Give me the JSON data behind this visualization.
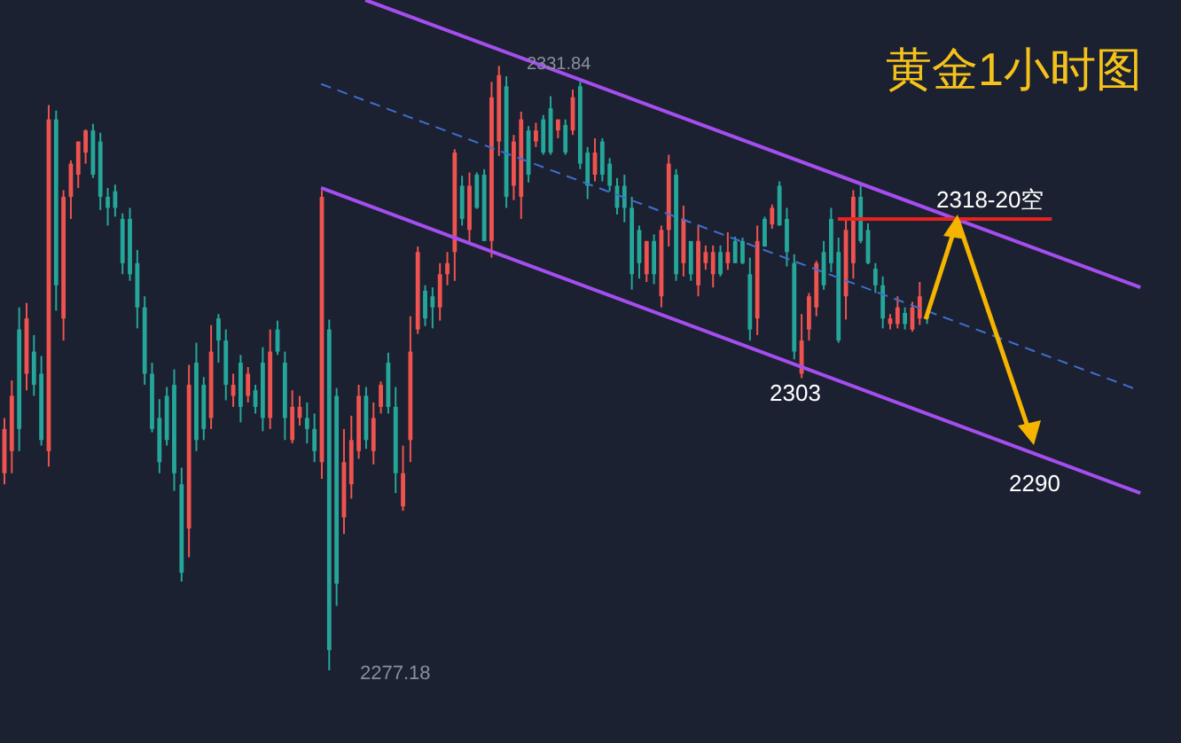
{
  "chart_data": {
    "type": "candlestick",
    "title": "黄金1小时图",
    "annotations": [
      "2331.84",
      "2277.18",
      "2303",
      "2290",
      "2318-20空"
    ],
    "categories": [
      null,
      null,
      null,
      null,
      null,
      null,
      null,
      null,
      null,
      null,
      null,
      null,
      null,
      null,
      null,
      null,
      null,
      null,
      null,
      null,
      null,
      null,
      null,
      null,
      null,
      null,
      null,
      null,
      null,
      null,
      null,
      null,
      null,
      null,
      null,
      null,
      null,
      null,
      null,
      null,
      null,
      null,
      null,
      null,
      null,
      null,
      null,
      null,
      null,
      null,
      null,
      null,
      null,
      null,
      null,
      null,
      null,
      null,
      null,
      null,
      null,
      null,
      null,
      null,
      null,
      null,
      null,
      null,
      null,
      null,
      null,
      null,
      null,
      null,
      null,
      null,
      null,
      null,
      null,
      null,
      null,
      null,
      null,
      null,
      null,
      null,
      null,
      null,
      null,
      null,
      null,
      null,
      null,
      null,
      null,
      null,
      null,
      null,
      null,
      null,
      null,
      null,
      null,
      null,
      null,
      null,
      null,
      null,
      null,
      null,
      null,
      null,
      null,
      null,
      null,
      null,
      null,
      null,
      null,
      null,
      null,
      null,
      null,
      null,
      null,
      null,
      null,
      null,
      null,
      null,
      null,
      null,
      null,
      null,
      null,
      null,
      null,
      null,
      null,
      null,
      null,
      null,
      null,
      null,
      null,
      null,
      null,
      null,
      null,
      null,
      null,
      null,
      null,
      null,
      null,
      null,
      null,
      null,
      null,
      null
    ],
    "ohlc": [
      [
        2299,
        2300,
        2294,
        2295
      ],
      [
        2302,
        2303.4,
        2295,
        2297
      ],
      [
        2299,
        2310,
        2297,
        2308
      ],
      [
        2309,
        2310.4,
        2302.5,
        2304
      ],
      [
        2303,
        2307.5,
        2302,
        2306
      ],
      [
        2298,
        2305.6,
        2297.5,
        2304
      ],
      [
        2327,
        2328.3,
        2295.6,
        2297
      ],
      [
        2312,
        2327.8,
        2309.7,
        2327
      ],
      [
        2320,
        2320.6,
        2307,
        2309
      ],
      [
        2323,
        2323.3,
        2318,
        2320
      ],
      [
        2325,
        2325,
        2320.8,
        2322
      ],
      [
        2326,
        2326.1,
        2323,
        2324
      ],
      [
        2322,
        2326.6,
        2321.7,
        2326
      ],
      [
        2320,
        2325.8,
        2318.8,
        2325
      ],
      [
        2319,
        2320.8,
        2317.4,
        2320
      ],
      [
        2319,
        2321.1,
        2318.2,
        2320.5
      ],
      [
        2314,
        2318.5,
        2313,
        2318
      ],
      [
        2313,
        2319,
        2312.4,
        2318
      ],
      [
        2310,
        2315.2,
        2308.1,
        2314
      ],
      [
        2304,
        2311,
        2303,
        2310
      ],
      [
        2299,
        2305,
        2298.7,
        2304
      ],
      [
        2296,
        2301.7,
        2295,
        2300
      ],
      [
        2298,
        2302.8,
        2297.5,
        2302
      ],
      [
        2295,
        2304.4,
        2293.4,
        2303
      ],
      [
        2286,
        2295.5,
        2285.2,
        2294
      ],
      [
        2303,
        2304.8,
        2287.4,
        2290
      ],
      [
        2298,
        2306.8,
        2297,
        2305
      ],
      [
        2299,
        2303.7,
        2298,
        2303
      ],
      [
        2306,
        2308.4,
        2299,
        2300
      ],
      [
        2307,
        2309.4,
        2305,
        2309
      ],
      [
        2303,
        2308,
        2301.6,
        2307
      ],
      [
        2303,
        2304,
        2301,
        2302
      ],
      [
        2301,
        2305.7,
        2299.6,
        2305
      ],
      [
        2304,
        2304.6,
        2301.4,
        2302
      ],
      [
        2301,
        2303,
        2300.4,
        2302.5
      ],
      [
        2300,
        2306.4,
        2298.8,
        2305
      ],
      [
        2306,
        2308,
        2299,
        2300
      ],
      [
        2306,
        2308.8,
        2305.7,
        2308
      ],
      [
        2300,
        2306,
        2298,
        2305
      ],
      [
        2301,
        2302.5,
        2297.7,
        2298
      ],
      [
        2301,
        2302,
        2299.3,
        2300
      ],
      [
        2299,
        2301.4,
        2297.7,
        2300
      ],
      [
        2297,
        2300.4,
        2296,
        2299
      ],
      [
        2320,
        2320.6,
        2294.5,
        2296
      ],
      [
        2279,
        2308.9,
        2277.18,
        2308
      ],
      [
        2285,
        2302.7,
        2283,
        2302
      ],
      [
        2296,
        2299,
        2289.5,
        2291
      ],
      [
        2298,
        2300.2,
        2292.7,
        2294
      ],
      [
        2302,
        2303,
        2296.3,
        2297
      ],
      [
        2298,
        2302.8,
        2297.2,
        2302
      ],
      [
        2300,
        2301.4,
        2295.8,
        2297
      ],
      [
        2303,
        2303.3,
        2300.4,
        2301
      ],
      [
        2301,
        2305.9,
        2300.4,
        2305
      ],
      [
        2295,
        2302.8,
        2293.2,
        2301
      ],
      [
        2295,
        2297.5,
        2291.6,
        2292
      ],
      [
        2306,
        2309.2,
        2296,
        2298
      ],
      [
        2315,
        2315.5,
        2307.6,
        2308
      ],
      [
        2309,
        2312,
        2308.3,
        2311.5
      ],
      [
        2310,
        2311.8,
        2308.1,
        2311
      ],
      [
        2313,
        2314,
        2308.8,
        2310
      ],
      [
        2314,
        2315,
        2312,
        2313
      ],
      [
        2324,
        2324.3,
        2312.4,
        2315
      ],
      [
        2318,
        2321.9,
        2317.4,
        2321
      ],
      [
        2321,
        2322.2,
        2315.8,
        2317
      ],
      [
        2319,
        2322.2,
        2318.9,
        2322
      ],
      [
        2316,
        2322.5,
        2316,
        2322
      ],
      [
        2329,
        2330.4,
        2314.5,
        2316
      ],
      [
        2331,
        2331.84,
        2323.7,
        2325
      ],
      [
        2320,
        2330.9,
        2319,
        2330
      ],
      [
        2325,
        2325.6,
        2319.7,
        2321
      ],
      [
        2327,
        2327.7,
        2318,
        2320
      ],
      [
        2322,
        2326.4,
        2321.3,
        2326
      ],
      [
        2326,
        2326.7,
        2324.5,
        2325
      ],
      [
        2324,
        2327.4,
        2323.8,
        2327
      ],
      [
        2324,
        2329.1,
        2323.8,
        2328
      ],
      [
        2327,
        2327,
        2325.3,
        2326
      ],
      [
        2324,
        2327,
        2323.8,
        2326.5
      ],
      [
        2329,
        2329.7,
        2325.6,
        2326
      ],
      [
        2323,
        2330.4,
        2322.5,
        2330
      ],
      [
        2321,
        2324.5,
        2319.8,
        2324
      ],
      [
        2324,
        2325.3,
        2321.4,
        2322
      ],
      [
        2322,
        2325.3,
        2321.4,
        2325
      ],
      [
        2321,
        2323.5,
        2320.5,
        2323
      ],
      [
        2319,
        2321.7,
        2318.4,
        2321
      ],
      [
        2319,
        2322,
        2317.7,
        2321
      ],
      [
        2313,
        2320,
        2311.6,
        2319
      ],
      [
        2314,
        2317.4,
        2312.6,
        2317
      ],
      [
        2316,
        2316,
        2312.3,
        2313
      ],
      [
        2313,
        2316.6,
        2312.1,
        2316
      ],
      [
        2317,
        2317.4,
        2310,
        2311
      ],
      [
        2323,
        2323.8,
        2315.5,
        2317
      ],
      [
        2313,
        2322.5,
        2312.4,
        2322
      ],
      [
        2318,
        2319.2,
        2312.8,
        2314
      ],
      [
        2313,
        2316,
        2312.4,
        2316
      ],
      [
        2316,
        2317.4,
        2311,
        2312
      ],
      [
        2315,
        2315.6,
        2313.4,
        2314
      ],
      [
        2315,
        2315.6,
        2311.8,
        2313
      ],
      [
        2313,
        2315.6,
        2312.8,
        2315
      ],
      [
        2315,
        2316.8,
        2313.4,
        2314
      ],
      [
        2314,
        2316.4,
        2314,
        2316
      ],
      [
        2314,
        2316.3,
        2313.9,
        2316
      ],
      [
        2308,
        2314.5,
        2307,
        2313
      ],
      [
        2316,
        2317.4,
        2307.5,
        2309
      ],
      [
        2315.5,
        2318.2,
        2315.5,
        2318
      ],
      [
        2319,
        2319.3,
        2317.1,
        2317.5
      ],
      [
        2317.4,
        2321.4,
        2317.4,
        2321
      ],
      [
        2315,
        2319,
        2313.7,
        2318
      ],
      [
        2306,
        2314.8,
        2305.3,
        2314
      ],
      [
        2307,
        2309.4,
        2303.6,
        2304
      ],
      [
        2311,
        2311.3,
        2307,
        2308
      ],
      [
        2314,
        2314.2,
        2309.2,
        2310
      ],
      [
        2312,
        2316,
        2311.6,
        2315
      ],
      [
        2314,
        2319,
        2313.2,
        2318
      ],
      [
        2307,
        2316.3,
        2306.8,
        2315
      ],
      [
        2317,
        2317.9,
        2308.9,
        2311
      ],
      [
        2320,
        2320.6,
        2312.6,
        2314
      ],
      [
        2316,
        2321.1,
        2315.8,
        2320
      ],
      [
        2314,
        2317.6,
        2313.9,
        2317
      ],
      [
        2312,
        2314,
        2311.3,
        2313.5
      ],
      [
        2309,
        2312.8,
        2308.1,
        2312
      ],
      [
        2309,
        2309.4,
        2308,
        2308.5
      ],
      [
        2310,
        2311,
        2308.1,
        2308.5
      ],
      [
        2308.5,
        2310,
        2308,
        2309.5
      ],
      [
        2310,
        2310.5,
        2307.8,
        2308
      ],
      [
        2311,
        2312.3,
        2308.4,
        2309
      ],
      [
        2309,
        2309.5,
        2308.5,
        2309.2
      ],
      null,
      null,
      null,
      null,
      null,
      null,
      null,
      null,
      null,
      null,
      null,
      null,
      null,
      null,
      null,
      null,
      null,
      null,
      null,
      null,
      null,
      null,
      null,
      null,
      null,
      null,
      null,
      null,
      null,
      null,
      null,
      null,
      null,
      null
    ],
    "colors": [
      "#ef5350",
      "#ef5350",
      "#26a69a",
      "#ef5350",
      "#26a69a",
      "#26a69a",
      "#ef5350",
      "#26a69a",
      "#ef5350",
      "#ef5350",
      "#ef5350",
      "#ef5350",
      "#26a69a",
      "#26a69a",
      "#26a69a",
      "#26a69a",
      "#26a69a",
      "#26a69a",
      "#26a69a",
      "#26a69a",
      "#26a69a",
      "#26a69a",
      "#26a69a",
      "#26a69a",
      "#26a69a",
      "#ef5350",
      "#26a69a",
      "#26a69a",
      "#ef5350",
      "#26a69a",
      "#26a69a",
      "#ef5350",
      "#26a69a",
      "#ef5350",
      "#26a69a",
      "#26a69a",
      "#ef5350",
      "#26a69a",
      "#26a69a",
      "#ef5350",
      "#ef5350",
      "#26a69a",
      "#26a69a",
      "#ef5350",
      "#26a69a",
      "#26a69a",
      "#ef5350",
      "#ef5350",
      "#ef5350",
      "#26a69a",
      "#ef5350",
      "#ef5350",
      "#26a69a",
      "#26a69a",
      "#ef5350",
      "#ef5350",
      "#ef5350",
      "#26a69a",
      "#26a69a",
      "#ef5350",
      "#ef5350",
      "#ef5350",
      "#26a69a",
      "#ef5350",
      "#26a69a",
      "#26a69a",
      "#ef5350",
      "#ef5350",
      "#26a69a",
      "#ef5350",
      "#ef5350",
      "#26a69a",
      "#ef5350",
      "#26a69a",
      "#26a69a",
      "#ef5350",
      "#26a69a",
      "#ef5350",
      "#26a69a",
      "#26a69a",
      "#ef5350",
      "#26a69a",
      "#26a69a",
      "#26a69a",
      "#26a69a",
      "#26a69a",
      "#26a69a",
      "#ef5350",
      "#26a69a",
      "#ef5350",
      "#ef5350",
      "#26a69a",
      "#ef5350",
      "#26a69a",
      "#ef5350",
      "#ef5350",
      "#ef5350",
      "#26a69a",
      "#ef5350",
      "#26a69a",
      "#26a69a",
      "#26a69a",
      "#ef5350",
      "#26a69a",
      "#ef5350",
      "#26a69a",
      "#26a69a",
      "#26a69a",
      "#ef5350",
      "#ef5350",
      "#ef5350",
      "#26a69a",
      "#26a69a",
      "#26a69a",
      "#ef5350",
      "#ef5350",
      "#26a69a",
      "#26a69a",
      "#26a69a",
      "#26a69a",
      "#ef5350",
      "#ef5350",
      "#26a69a",
      "#ef5350",
      "#ef5350",
      "#26a69a",
      null,
      null,
      null,
      null,
      null,
      null,
      null,
      null,
      null,
      null,
      null,
      null,
      null,
      null,
      null,
      null,
      null,
      null,
      null,
      null,
      null,
      null,
      null,
      null,
      null,
      null,
      null,
      null,
      null,
      null,
      null,
      null,
      null,
      null
    ],
    "ylim": [
      2270.6,
      2337.8
    ],
    "series": [
      {
        "type": "line",
        "color": "#a54ef0",
        "values": [
          null,
          null,
          null,
          null,
          null,
          null,
          null,
          null,
          null,
          null,
          null,
          null,
          null,
          null,
          null,
          null,
          null,
          null,
          null,
          null,
          null,
          null,
          null,
          null,
          null,
          null,
          null,
          null,
          null,
          null,
          null,
          null,
          null,
          null,
          null,
          null,
          null,
          null,
          null,
          null,
          null,
          null,
          null,
          null,
          null,
          null,
          null,
          null,
          null,
          2337.8,
          null,
          null,
          null,
          null,
          null,
          null,
          null,
          null,
          null,
          null,
          null,
          null,
          null,
          null,
          null,
          null,
          null,
          null,
          null,
          null,
          null,
          null,
          null,
          null,
          null,
          null,
          null,
          null,
          null,
          null,
          null,
          null,
          null,
          null,
          null,
          null,
          null,
          null,
          null,
          null,
          null,
          null,
          null,
          null,
          null,
          null,
          null,
          null,
          null,
          null,
          null,
          null,
          null,
          null,
          null,
          null,
          null,
          null,
          null,
          null,
          null,
          null,
          null,
          null,
          null,
          null,
          null,
          null,
          null,
          null,
          null,
          null,
          null,
          null,
          null,
          null,
          null,
          null,
          null,
          null,
          null,
          null,
          null,
          null,
          null,
          null,
          null,
          null,
          null,
          null,
          null,
          null,
          null,
          null,
          null,
          null,
          null,
          null,
          null,
          null,
          null,
          null,
          null,
          null,
          2311.8,
          null,
          null,
          null,
          null,
          null
        ]
      },
      {
        "type": "line",
        "color": "#a54ef0",
        "values": [
          null,
          null,
          null,
          null,
          null,
          null,
          null,
          null,
          null,
          null,
          null,
          null,
          null,
          null,
          null,
          null,
          null,
          null,
          null,
          null,
          null,
          null,
          null,
          null,
          null,
          null,
          null,
          null,
          null,
          null,
          null,
          null,
          null,
          null,
          null,
          null,
          null,
          null,
          null,
          null,
          null,
          null,
          null,
          2320.8,
          null,
          null,
          null,
          null,
          null,
          null,
          null,
          null,
          null,
          null,
          null,
          null,
          null,
          null,
          null,
          null,
          null,
          null,
          null,
          null,
          null,
          null,
          null,
          null,
          null,
          null,
          null,
          null,
          null,
          null,
          null,
          null,
          null,
          null,
          null,
          null,
          null,
          null,
          null,
          null,
          null,
          null,
          null,
          null,
          null,
          null,
          null,
          null,
          null,
          null,
          null,
          null,
          null,
          null,
          null,
          null,
          null,
          null,
          null,
          null,
          null,
          null,
          null,
          null,
          null,
          null,
          null,
          null,
          null,
          null,
          null,
          null,
          null,
          null,
          null,
          null,
          null,
          null,
          null,
          null,
          null,
          null,
          null,
          null,
          null,
          null,
          null,
          null,
          null,
          null,
          null,
          null,
          null,
          null,
          null,
          null,
          null,
          null,
          null,
          null,
          null,
          null,
          null,
          null,
          null,
          null,
          null,
          null,
          null,
          null,
          2293.2,
          null,
          null,
          null,
          null,
          null
        ]
      },
      {
        "type": "line",
        "color": "#3f6fcf",
        "line_style": "dashed",
        "values": [
          null,
          null,
          null,
          null,
          null,
          null,
          null,
          null,
          null,
          null,
          null,
          null,
          null,
          null,
          null,
          null,
          null,
          null,
          null,
          null,
          null,
          null,
          null,
          null,
          null,
          null,
          null,
          null,
          null,
          null,
          null,
          null,
          null,
          null,
          null,
          null,
          null,
          null,
          null,
          null,
          null,
          null,
          null,
          2330.2,
          null,
          null,
          null,
          null,
          null,
          null,
          null,
          null,
          null,
          null,
          null,
          null,
          null,
          null,
          null,
          null,
          null,
          null,
          null,
          null,
          null,
          null,
          null,
          null,
          null,
          null,
          null,
          null,
          null,
          null,
          null,
          null,
          null,
          null,
          null,
          null,
          null,
          null,
          null,
          null,
          null,
          null,
          null,
          null,
          null,
          null,
          null,
          null,
          null,
          null,
          null,
          null,
          null,
          null,
          null,
          null,
          null,
          null,
          null,
          null,
          null,
          null,
          null,
          null,
          null,
          null,
          null,
          null,
          null,
          null,
          null,
          null,
          null,
          null,
          null,
          null,
          null,
          null,
          null,
          null,
          null,
          null,
          null,
          null,
          null,
          null,
          null,
          null,
          null,
          null,
          null,
          null,
          null,
          null,
          null,
          null,
          null,
          null,
          null,
          null,
          null,
          null,
          null,
          null,
          null,
          null,
          null,
          null,
          null,
          2302.7,
          null,
          null,
          null,
          null,
          null,
          null
        ]
      },
      {
        "type": "line",
        "color": "#e8231f",
        "values": [
          null,
          null,
          null,
          null,
          null,
          null,
          null,
          null,
          null,
          null,
          null,
          null,
          null,
          null,
          null,
          null,
          null,
          null,
          null,
          null,
          null,
          null,
          null,
          null,
          null,
          null,
          null,
          null,
          null,
          null,
          null,
          null,
          null,
          null,
          null,
          null,
          null,
          null,
          null,
          null,
          null,
          null,
          null,
          null,
          null,
          null,
          null,
          null,
          null,
          null,
          null,
          null,
          null,
          null,
          null,
          null,
          null,
          null,
          null,
          null,
          null,
          null,
          null,
          null,
          null,
          null,
          null,
          null,
          null,
          null,
          null,
          null,
          null,
          null,
          null,
          null,
          null,
          null,
          null,
          null,
          null,
          null,
          null,
          null,
          null,
          null,
          null,
          null,
          null,
          null,
          null,
          null,
          null,
          null,
          null,
          null,
          null,
          null,
          null,
          null,
          null,
          null,
          null,
          null,
          null,
          null,
          null,
          null,
          null,
          null,
          null,
          null,
          null,
          2318,
          null,
          null,
          null,
          null,
          null,
          null,
          null,
          null,
          null,
          null,
          null,
          null,
          null,
          null,
          null,
          null,
          null,
          null,
          null,
          null,
          null,
          null,
          null,
          null,
          null,
          null,
          null,
          null,
          2318,
          null,
          null,
          null,
          null,
          null,
          null,
          null,
          null,
          null,
          null,
          null,
          null,
          null,
          null,
          null,
          null,
          null
        ]
      }
    ]
  }
}
